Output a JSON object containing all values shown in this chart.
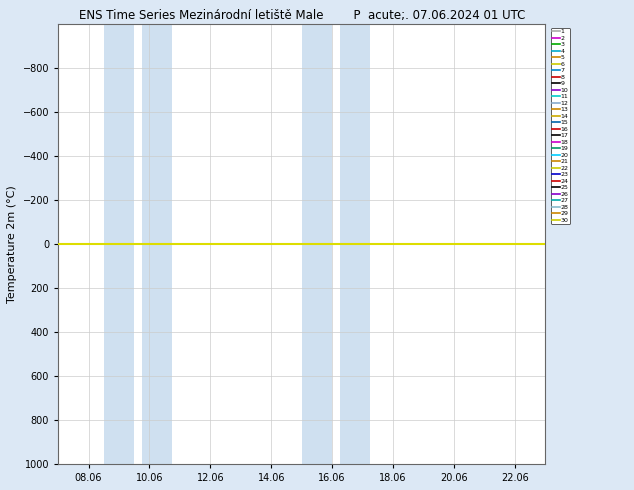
{
  "title_left": "ENS Time Series Mezinárodní letiště Male",
  "title_right": "P  acute;. 07.06.2024 01 UTC",
  "ylabel": "Temperature 2m (°C)",
  "ylim_bottom": 1000,
  "ylim_top": -1000,
  "yticks": [
    -800,
    -600,
    -400,
    -200,
    0,
    200,
    400,
    600,
    800,
    1000
  ],
  "xtick_labels": [
    "08.06",
    "10.06",
    "12.06",
    "14.06",
    "16.06",
    "18.06",
    "20.06",
    "22.06"
  ],
  "xtick_vals": [
    8,
    10,
    12,
    14,
    16,
    18,
    20,
    22
  ],
  "xlim": [
    7.0,
    23.0
  ],
  "shaded_bands": [
    [
      8.5,
      9.5
    ],
    [
      9.75,
      10.75
    ],
    [
      15.0,
      16.0
    ],
    [
      16.25,
      17.25
    ]
  ],
  "fig_bg": "#dce8f5",
  "plot_bg": "#ffffff",
  "line_color": "#dddd00",
  "line_y": 0,
  "member_colors": [
    "#aaaaaa",
    "#cc00cc",
    "#00aa00",
    "#00aacc",
    "#cc8800",
    "#cccc00",
    "#0088cc",
    "#cc0000",
    "#000000",
    "#8800cc",
    "#00cccc",
    "#88aacc",
    "#cc8800",
    "#ccaa00",
    "#0066aa",
    "#cc0000",
    "#000000",
    "#cc00cc",
    "#009966",
    "#00ccff",
    "#cc8800",
    "#cccc00",
    "#0000cc",
    "#cc0000",
    "#000000",
    "#8800cc",
    "#00aaaa",
    "#88bbcc",
    "#cc8800",
    "#cccc00"
  ],
  "member_labels": [
    "1",
    "2",
    "3",
    "4",
    "5",
    "6",
    "7",
    "8",
    "9",
    "10",
    "11",
    "12",
    "13",
    "14",
    "15",
    "16",
    "17",
    "18",
    "19",
    "20",
    "21",
    "22",
    "23",
    "24",
    "25",
    "26",
    "27",
    "28",
    "29",
    "30"
  ]
}
